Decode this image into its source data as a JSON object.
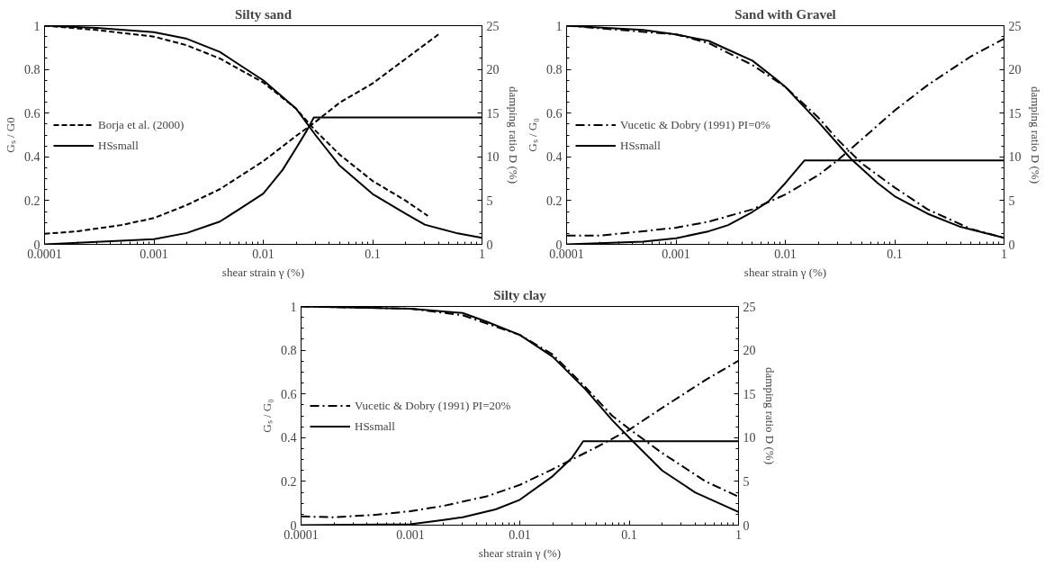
{
  "chart_data": [
    {
      "type": "line",
      "title": "Silty sand",
      "xlabel": "shear strain γ (%)",
      "ylabel": "Gₛ / G0",
      "y2label": "damping ratio D (%)",
      "log": "x",
      "xlim": [
        0.0001,
        1
      ],
      "xticks": [
        0.0001,
        0.001,
        0.01,
        0.1,
        1
      ],
      "ylim": [
        0,
        1
      ],
      "yticks": [
        0,
        0.2,
        0.4,
        0.6,
        0.8,
        1
      ],
      "y2lim": [
        0,
        25
      ],
      "y2ticks": [
        0,
        5,
        10,
        15,
        20,
        25
      ],
      "grid": false,
      "legend": "left",
      "series": [
        {
          "name": "Borja et al. (2000)",
          "color": "#000000",
          "line_style": "dashed",
          "x": [
            0.0001,
            0.0003,
            0.001,
            0.002,
            0.004,
            0.01,
            0.02,
            0.03,
            0.05,
            0.1,
            0.2,
            0.32
          ],
          "values": [
            1.0,
            0.98,
            0.95,
            0.91,
            0.85,
            0.74,
            0.62,
            0.52,
            0.41,
            0.29,
            0.2,
            0.13
          ]
        },
        {
          "name": "HSsmall",
          "color": "#000000",
          "line_style": "solid",
          "x": [
            0.0001,
            0.0003,
            0.001,
            0.002,
            0.004,
            0.01,
            0.02,
            0.03,
            0.05,
            0.1,
            0.2,
            0.3,
            0.6,
            1
          ],
          "values": [
            1.0,
            0.99,
            0.97,
            0.94,
            0.88,
            0.75,
            0.62,
            0.5,
            0.36,
            0.23,
            0.14,
            0.09,
            0.05,
            0.03
          ]
        },
        {
          "color": "#000000",
          "line_style": "dashed",
          "axis": "y2",
          "x": [
            0.0001,
            0.0002,
            0.0005,
            0.001,
            0.002,
            0.004,
            0.01,
            0.02,
            0.03,
            0.05,
            0.1,
            0.2,
            0.4
          ],
          "values": [
            1.2,
            1.5,
            2.2,
            3.0,
            4.5,
            6.3,
            9.5,
            12.4,
            14.0,
            16.2,
            18.4,
            21.2,
            24.0
          ]
        },
        {
          "color": "#000000",
          "line_style": "solid",
          "axis": "y2",
          "x": [
            0.0001,
            0.001,
            0.002,
            0.004,
            0.006,
            0.01,
            0.015,
            0.02,
            0.025,
            0.029,
            1
          ],
          "values": [
            0,
            0.6,
            1.3,
            2.6,
            4.0,
            5.8,
            8.5,
            11.0,
            13.0,
            14.5,
            14.5
          ]
        }
      ]
    },
    {
      "type": "line",
      "title": "Sand with Gravel",
      "xlabel": "shear strain γ (%)",
      "ylabel": "Gₛ / G₀",
      "y2label": "damping ratio D (%)",
      "log": "x",
      "xlim": [
        0.0001,
        1
      ],
      "xticks": [
        0.0001,
        0.001,
        0.01,
        0.1,
        1
      ],
      "ylim": [
        0,
        1
      ],
      "yticks": [
        0,
        0.2,
        0.4,
        0.6,
        0.8,
        1
      ],
      "y2lim": [
        0,
        25
      ],
      "y2ticks": [
        0,
        5,
        10,
        15,
        20,
        25
      ],
      "grid": false,
      "legend": "left",
      "series": [
        {
          "name": "Vucetic & Dobry (1991) PI=0%",
          "color": "#000000",
          "line_style": "dashdot",
          "x": [
            0.0001,
            0.001,
            0.002,
            0.005,
            0.01,
            0.02,
            0.03,
            0.05,
            0.1,
            0.2,
            0.5,
            1
          ],
          "values": [
            1.0,
            0.96,
            0.92,
            0.82,
            0.72,
            0.58,
            0.48,
            0.37,
            0.26,
            0.16,
            0.07,
            0.03
          ]
        },
        {
          "name": "HSsmall",
          "color": "#000000",
          "line_style": "solid",
          "x": [
            0.0001,
            0.0005,
            0.001,
            0.002,
            0.003,
            0.005,
            0.008,
            0.01,
            0.02,
            0.04,
            0.07,
            0.1,
            0.2,
            0.4,
            1
          ],
          "values": [
            1.0,
            0.98,
            0.96,
            0.93,
            0.89,
            0.84,
            0.76,
            0.72,
            0.56,
            0.39,
            0.28,
            0.22,
            0.14,
            0.08,
            0.03
          ]
        },
        {
          "color": "#000000",
          "line_style": "dashdot",
          "axis": "y2",
          "x": [
            0.0001,
            0.0002,
            0.0005,
            0.001,
            0.002,
            0.005,
            0.01,
            0.02,
            0.03,
            0.05,
            0.1,
            0.2,
            0.5,
            1
          ],
          "values": [
            1.0,
            1.0,
            1.5,
            1.9,
            2.6,
            4.0,
            5.7,
            7.9,
            9.6,
            12.0,
            15.3,
            18.2,
            21.5,
            23.5
          ]
        },
        {
          "color": "#000000",
          "line_style": "solid",
          "axis": "y2",
          "x": [
            0.0001,
            0.0005,
            0.001,
            0.002,
            0.003,
            0.005,
            0.007,
            0.01,
            0.015,
            1
          ],
          "values": [
            0,
            0.3,
            0.7,
            1.5,
            2.2,
            3.7,
            4.9,
            7.0,
            9.6,
            9.6
          ]
        }
      ]
    },
    {
      "type": "line",
      "title": "Silty clay",
      "xlabel": "shear strain γ (%)",
      "ylabel": "Gₛ / G₀",
      "y2label": "damping ratio D (%)",
      "log": "x",
      "xlim": [
        0.0001,
        1
      ],
      "xticks": [
        0.0001,
        0.001,
        0.01,
        0.1,
        1
      ],
      "ylim": [
        0,
        1
      ],
      "yticks": [
        0,
        0.2,
        0.4,
        0.6,
        0.8,
        1
      ],
      "y2lim": [
        0,
        25
      ],
      "y2ticks": [
        0,
        5,
        10,
        15,
        20,
        25
      ],
      "grid": false,
      "legend": "left",
      "series": [
        {
          "name": "Vucetic & Dobry (1991) PI=20%",
          "color": "#000000",
          "line_style": "dashdot",
          "x": [
            0.0001,
            0.001,
            0.003,
            0.01,
            0.02,
            0.04,
            0.07,
            0.1,
            0.2,
            0.5,
            1
          ],
          "values": [
            1.0,
            0.99,
            0.96,
            0.87,
            0.78,
            0.63,
            0.5,
            0.44,
            0.33,
            0.2,
            0.13
          ]
        },
        {
          "name": "HSsmall",
          "color": "#000000",
          "line_style": "solid",
          "x": [
            0.0001,
            0.001,
            0.003,
            0.005,
            0.01,
            0.02,
            0.04,
            0.07,
            0.1,
            0.2,
            0.4,
            1
          ],
          "values": [
            1.0,
            0.99,
            0.97,
            0.93,
            0.87,
            0.77,
            0.62,
            0.48,
            0.4,
            0.25,
            0.15,
            0.06
          ]
        },
        {
          "color": "#000000",
          "line_style": "dashdot",
          "axis": "y2",
          "x": [
            0.0001,
            0.0002,
            0.0005,
            0.001,
            0.002,
            0.005,
            0.01,
            0.02,
            0.05,
            0.1,
            0.2,
            0.5,
            1
          ],
          "values": [
            1.0,
            0.9,
            1.2,
            1.6,
            2.2,
            3.3,
            4.6,
            6.4,
            8.9,
            10.9,
            13.4,
            16.6,
            18.8
          ]
        },
        {
          "color": "#000000",
          "line_style": "solid",
          "axis": "y2",
          "x": [
            0.0001,
            0.001,
            0.002,
            0.003,
            0.006,
            0.01,
            0.02,
            0.03,
            0.038,
            1
          ],
          "values": [
            0,
            0.1,
            0.6,
            0.9,
            1.8,
            2.9,
            5.6,
            7.7,
            9.6,
            9.6
          ]
        }
      ]
    }
  ]
}
